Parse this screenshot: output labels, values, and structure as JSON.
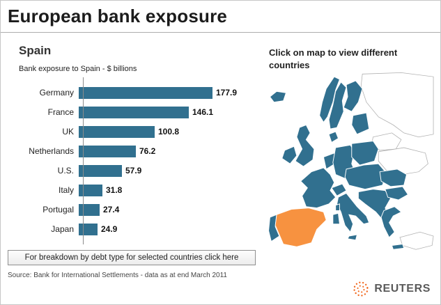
{
  "title": "European bank exposure",
  "chart": {
    "heading": "Spain",
    "subtitle": "Bank exposure to Spain - $ billions"
  },
  "chart_data": {
    "type": "bar",
    "orientation": "horizontal",
    "title": "Bank exposure to Spain - $ billions",
    "categories": [
      "Germany",
      "France",
      "UK",
      "Netherlands",
      "U.S.",
      "Italy",
      "Portugal",
      "Japan"
    ],
    "values": [
      177.9,
      146.1,
      100.8,
      76.2,
      57.9,
      31.8,
      27.4,
      24.9
    ],
    "xlim": [
      0,
      200
    ],
    "grid": false,
    "value_labels": true
  },
  "map": {
    "instruction": "Click on map to view different countries",
    "highlighted_country": "Spain"
  },
  "footer": {
    "button_label": "For breakdown by debt type for selected countries click here",
    "source": "Source: Bank for International Settlements - data as at end March 2011",
    "logo_text": "REUTERS"
  },
  "colors": {
    "bar": "#31708f",
    "map_country": "#31708f",
    "map_highlight": "#f79240",
    "logo_orange": "#f26a21"
  }
}
